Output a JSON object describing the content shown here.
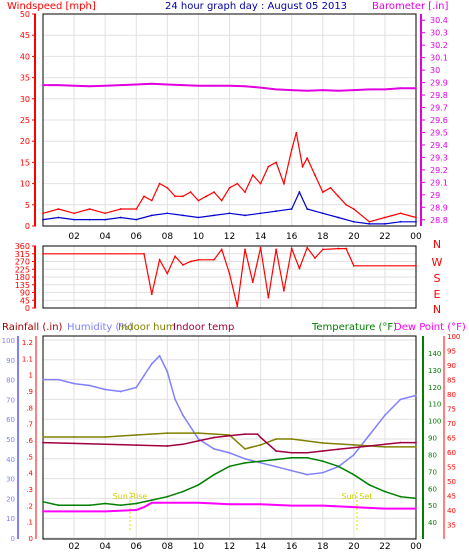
{
  "chart_data": [
    {
      "type": "line",
      "title": "24 hour graph day : August 05 2013",
      "left_axis": {
        "label": "Windspeed [mph]",
        "ticks": [
          0,
          5,
          10,
          15,
          20,
          25,
          30,
          35,
          40,
          45,
          50
        ],
        "range": [
          0,
          50
        ],
        "color": "#ff0000"
      },
      "right_axis": {
        "label": "Barometer [.in]",
        "ticks": [
          28.8,
          28.9,
          29.0,
          29.1,
          29.2,
          29.3,
          29.4,
          29.5,
          29.6,
          29.7,
          29.8,
          29.9,
          30.0,
          30.1,
          30.2,
          30.3,
          30.4
        ],
        "tick_labels": [
          "28.8",
          "28.9",
          "29",
          "29.1",
          "29.2",
          "29.3",
          "29.4",
          "29.5",
          "29.6",
          "29.7",
          "29.8",
          "29.9",
          "30",
          "30.1",
          "30.2",
          "30.3",
          "30.4"
        ],
        "range": [
          28.75,
          30.45
        ],
        "color": "#e000e0"
      },
      "x_ticks": [
        "02",
        "04",
        "06",
        "08",
        "10",
        "12",
        "14",
        "16",
        "18",
        "20",
        "22",
        "00"
      ],
      "x_tick_hours": [
        2,
        4,
        6,
        8,
        10,
        12,
        14,
        16,
        18,
        20,
        22,
        24
      ],
      "grid": true,
      "series": [
        {
          "name": "Barometer",
          "axis": "right",
          "color": "#e000e0",
          "x": [
            0,
            1,
            2,
            3,
            4,
            5,
            6,
            7,
            8,
            9,
            10,
            11,
            12,
            13,
            14,
            15,
            16,
            17,
            18,
            19,
            20,
            21,
            22,
            23,
            24
          ],
          "y": [
            29.88,
            29.88,
            29.875,
            29.87,
            29.875,
            29.88,
            29.885,
            29.89,
            29.885,
            29.88,
            29.875,
            29.875,
            29.875,
            29.87,
            29.86,
            29.845,
            29.84,
            29.835,
            29.84,
            29.835,
            29.84,
            29.845,
            29.845,
            29.855,
            29.855
          ]
        },
        {
          "name": "Wind gust",
          "axis": "left",
          "color": "#ff0000",
          "x": [
            0,
            1,
            2,
            3,
            4,
            5,
            6,
            6.5,
            7,
            7.5,
            8,
            8.5,
            9,
            9.5,
            10,
            10.5,
            11,
            11.5,
            12,
            12.5,
            13,
            13.5,
            14,
            14.5,
            15,
            15.5,
            16,
            16.3,
            16.7,
            17,
            17.5,
            18,
            18.5,
            19,
            19.5,
            20,
            21,
            22,
            23,
            24
          ],
          "y": [
            3,
            4,
            3,
            4,
            3,
            4,
            4,
            7,
            6,
            10,
            9,
            7,
            7,
            8,
            6,
            7,
            8,
            6,
            9,
            10,
            8,
            12,
            10,
            14,
            15,
            10,
            18,
            22,
            14,
            16,
            12,
            8,
            9,
            7,
            5,
            4,
            1,
            2,
            3,
            2
          ]
        },
        {
          "name": "Wind speed",
          "axis": "left",
          "color": "#0000cc",
          "x": [
            0,
            1,
            2,
            3,
            4,
            5,
            6,
            7,
            8,
            9,
            10,
            11,
            12,
            13,
            14,
            15,
            16,
            16.5,
            17,
            18,
            19,
            20,
            21,
            22,
            23,
            24
          ],
          "y": [
            1.5,
            2,
            1.5,
            1.5,
            1.5,
            2,
            1.5,
            2.5,
            3,
            2.5,
            2,
            2.5,
            3,
            2.5,
            3,
            3.5,
            4,
            8,
            4,
            3,
            2,
            1,
            0.5,
            0.5,
            1,
            1
          ]
        }
      ]
    },
    {
      "type": "line",
      "left_axis": {
        "ticks": [
          0,
          45,
          90,
          135,
          180,
          225,
          270,
          315,
          360
        ],
        "range": [
          0,
          360
        ],
        "color": "#ff0000"
      },
      "right_axis": {
        "tick_labels": [
          "N",
          "W",
          "S",
          "E",
          "N"
        ],
        "color": "#ff0000"
      },
      "grid": true,
      "series": [
        {
          "name": "Wind direction",
          "color": "#ff0000",
          "x": [
            0,
            6.5,
            7,
            7.5,
            8,
            8.5,
            9,
            9.5,
            10,
            11,
            11.5,
            12,
            12.5,
            13,
            13.5,
            14,
            14.5,
            15,
            15.5,
            16,
            16.5,
            17,
            17.5,
            18,
            19,
            19.5,
            20,
            24
          ],
          "y": [
            315,
            315,
            80,
            280,
            200,
            300,
            250,
            270,
            280,
            280,
            340,
            200,
            10,
            340,
            150,
            350,
            60,
            340,
            100,
            345,
            230,
            350,
            290,
            340,
            345,
            345,
            245,
            245
          ]
        }
      ]
    },
    {
      "type": "line",
      "labels": [
        "Rainfall (.in)",
        "Humidity (%)",
        "Indoor hum",
        "Indoor temp",
        "Temperature (°F)",
        "Dew Point (°F)"
      ],
      "rain_axis": {
        "ticks": [
          0,
          0.1,
          0.2,
          0.3,
          0.4,
          0.5,
          0.6,
          0.7,
          0.8,
          0.9,
          1,
          1.1,
          1.2
        ],
        "tick_labels": [
          "0",
          ".1",
          ".2",
          ".3",
          ".4",
          ".5",
          ".6",
          ".7",
          ".8",
          ".9",
          "1",
          "1.1",
          "1.2"
        ],
        "color": "#ff0000"
      },
      "humidity_axis": {
        "ticks": [
          0,
          10,
          20,
          30,
          40,
          50,
          60,
          70,
          80,
          90,
          100
        ],
        "range": [
          0,
          100
        ],
        "color": "#8080ff"
      },
      "temperature_axis": {
        "ticks": [
          40,
          50,
          60,
          70,
          80,
          90,
          100,
          110,
          120,
          130,
          140
        ],
        "range": [
          30,
          150
        ],
        "color": "#008000"
      },
      "dewpoint_axis": {
        "ticks": [
          35,
          40,
          45,
          50,
          55,
          60,
          65,
          70,
          75,
          80,
          85,
          90,
          95,
          100
        ],
        "range": [
          30,
          100
        ],
        "color": "#ff0000"
      },
      "x_ticks": [
        "02",
        "04",
        "06",
        "08",
        "10",
        "12",
        "14",
        "16",
        "18",
        "20",
        "22",
        "00"
      ],
      "grid": true,
      "annotations": [
        "Sun Rise",
        "Sun Set"
      ],
      "annotation_hours": [
        5.6,
        20.2
      ],
      "series": [
        {
          "name": "Humidity",
          "color": "#8080ff",
          "x": [
            0,
            1,
            2,
            3,
            4,
            5,
            6,
            6.5,
            7,
            7.5,
            8,
            8.5,
            9,
            10,
            11,
            12,
            13,
            14,
            15,
            16,
            17,
            18,
            19,
            20,
            21,
            22,
            23,
            24
          ],
          "y": [
            80,
            80,
            78,
            77,
            75,
            74,
            76,
            82,
            88,
            92,
            84,
            70,
            62,
            50,
            45,
            43,
            40,
            38,
            36,
            34,
            32,
            33,
            36,
            42,
            52,
            62,
            70,
            72
          ]
        },
        {
          "name": "Indoor hum",
          "color": "#808000",
          "x": [
            0,
            2,
            4,
            6,
            8,
            10,
            12,
            13,
            14,
            15,
            16,
            18,
            20,
            22,
            24
          ],
          "y": [
            51,
            51,
            51,
            52,
            53,
            53,
            52,
            45,
            47,
            50,
            50,
            48,
            47,
            46,
            46
          ]
        },
        {
          "name": "Indoor temp",
          "color": "#a00040",
          "x": [
            0,
            2,
            4,
            6,
            8,
            9,
            10,
            11,
            12,
            13,
            13.8,
            14,
            15,
            16,
            17,
            18,
            19,
            20,
            21,
            22,
            23,
            24
          ],
          "y": [
            87,
            86.5,
            86,
            85.5,
            85,
            86,
            88,
            90,
            91,
            92,
            92,
            90,
            82,
            81,
            81,
            82,
            83,
            84,
            85,
            86,
            87,
            87
          ]
        },
        {
          "name": "Temperature",
          "color": "#008000",
          "x": [
            0,
            1,
            2,
            3,
            4,
            5,
            6,
            7,
            8,
            9,
            10,
            11,
            12,
            13,
            14,
            15,
            16,
            17,
            18,
            19,
            20,
            21,
            22,
            23,
            24
          ],
          "y": [
            52,
            50,
            50,
            50,
            51,
            50,
            51,
            53,
            55,
            58,
            62,
            68,
            73,
            75,
            76,
            77,
            78,
            78,
            76,
            73,
            68,
            62,
            58,
            55,
            54
          ]
        },
        {
          "name": "Dew Point",
          "color": "#ff00ff",
          "x": [
            0,
            2,
            4,
            6,
            6.5,
            7,
            8,
            10,
            12,
            14,
            16,
            18,
            20,
            22,
            24
          ],
          "y": [
            39.5,
            39.5,
            39.5,
            40,
            41,
            42.5,
            42.5,
            42.5,
            42,
            42,
            41.5,
            41.5,
            41,
            40.5,
            40.5
          ]
        }
      ]
    }
  ]
}
